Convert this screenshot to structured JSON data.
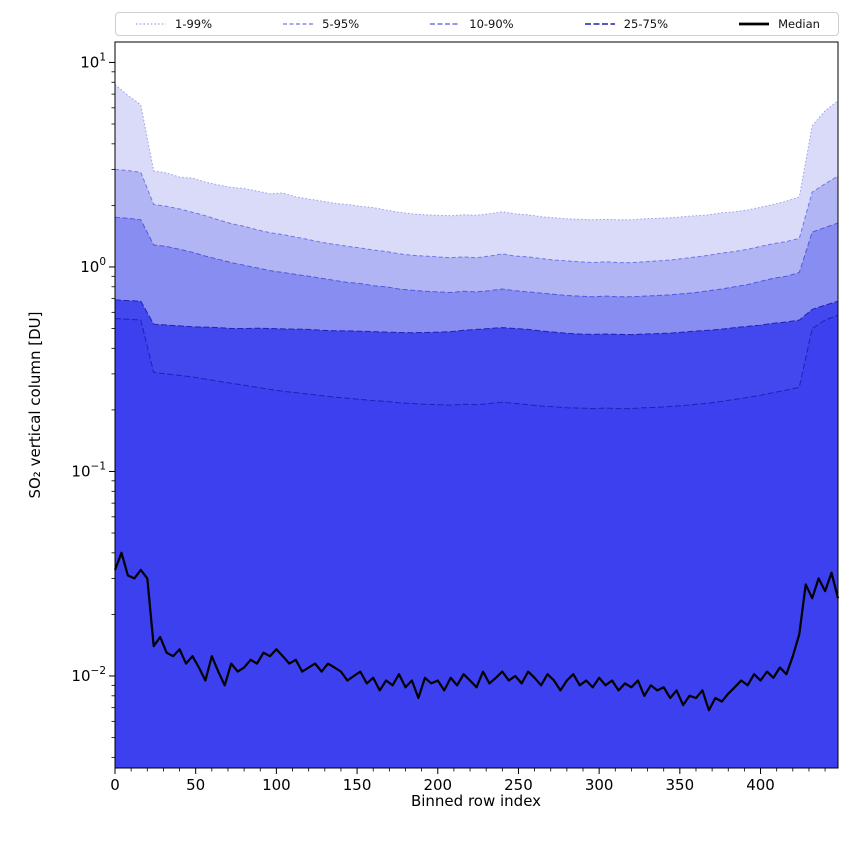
{
  "chart_data": {
    "type": "area",
    "title": "",
    "xlabel": "Binned row index",
    "ylabel": "SO₂ vertical column [DU]",
    "x_axis": {
      "lim": [
        0,
        448
      ],
      "major_ticks": [
        0,
        50,
        100,
        150,
        200,
        250,
        300,
        350,
        400
      ],
      "minor_step": 10
    },
    "y_axis": {
      "scale": "log",
      "lim_log10": [
        -2.45,
        1.1
      ],
      "major_ticks": [
        {
          "value": 0.01,
          "exp": "−2"
        },
        {
          "value": 0.1,
          "exp": "−1"
        },
        {
          "value": 1,
          "exp": "0"
        },
        {
          "value": 10,
          "exp": "1"
        }
      ]
    },
    "legend": [
      {
        "label": "1-99%",
        "color": "#9a9ef0",
        "dash": "1.5 2.2",
        "width": 1.2
      },
      {
        "label": "5-95%",
        "color": "#7076e8",
        "dash": "4 2.5",
        "width": 1.2
      },
      {
        "label": "10-90%",
        "color": "#5157e0",
        "dash": "5 2.5",
        "width": 1.2
      },
      {
        "label": "25-75%",
        "color": "#1e22b8",
        "dash": "6 2.5",
        "width": 1.4
      },
      {
        "label": "Median",
        "color": "#000000",
        "dash": "",
        "width": 2.8
      }
    ],
    "layers": [
      {
        "name": "1-99",
        "series": "p99",
        "fill": "#d9dbf8",
        "edge": "#9a9ef0",
        "dash": "1.5 2.2"
      },
      {
        "name": "5-95",
        "series": "p95",
        "fill": "#b1b5f4",
        "edge": "#7076e8",
        "dash": "4 2.5"
      },
      {
        "name": "10-90",
        "series": "p90",
        "fill": "#888df1",
        "edge": "#5157e0",
        "dash": "5 2.5"
      },
      {
        "name": "25-75",
        "series": "p75",
        "fill": "#4347ee",
        "edge": "#1e22b8",
        "dash": "6 2.5"
      },
      {
        "name": "below-25",
        "series": "p25",
        "fill": "#3c40ee",
        "edge": "#1e22b8",
        "dash": "6 2.5"
      }
    ],
    "x_bands": [
      0,
      8,
      16,
      24,
      32,
      40,
      48,
      56,
      64,
      72,
      80,
      88,
      96,
      104,
      112,
      120,
      128,
      136,
      144,
      152,
      160,
      168,
      176,
      184,
      192,
      200,
      208,
      216,
      224,
      232,
      240,
      248,
      256,
      264,
      272,
      280,
      288,
      296,
      304,
      312,
      320,
      328,
      336,
      344,
      352,
      360,
      368,
      376,
      384,
      392,
      400,
      408,
      416,
      424,
      432,
      440,
      448
    ],
    "series": {
      "p99": [
        7.8,
        6.9,
        6.2,
        2.95,
        2.88,
        2.75,
        2.72,
        2.6,
        2.52,
        2.45,
        2.42,
        2.35,
        2.28,
        2.3,
        2.2,
        2.15,
        2.1,
        2.05,
        2.02,
        1.98,
        1.95,
        1.9,
        1.85,
        1.82,
        1.8,
        1.79,
        1.78,
        1.8,
        1.79,
        1.82,
        1.86,
        1.82,
        1.8,
        1.76,
        1.74,
        1.72,
        1.71,
        1.7,
        1.71,
        1.7,
        1.7,
        1.72,
        1.73,
        1.74,
        1.76,
        1.78,
        1.8,
        1.84,
        1.86,
        1.9,
        1.96,
        2.02,
        2.1,
        2.2,
        4.9,
        5.8,
        6.5
      ],
      "p95": [
        3.0,
        2.96,
        2.9,
        2.02,
        1.98,
        1.92,
        1.85,
        1.78,
        1.7,
        1.63,
        1.58,
        1.52,
        1.47,
        1.44,
        1.4,
        1.36,
        1.32,
        1.29,
        1.26,
        1.24,
        1.21,
        1.19,
        1.16,
        1.14,
        1.13,
        1.12,
        1.11,
        1.12,
        1.11,
        1.13,
        1.16,
        1.13,
        1.12,
        1.1,
        1.08,
        1.07,
        1.06,
        1.05,
        1.06,
        1.05,
        1.05,
        1.06,
        1.07,
        1.08,
        1.1,
        1.12,
        1.14,
        1.17,
        1.19,
        1.22,
        1.26,
        1.3,
        1.33,
        1.38,
        2.32,
        2.55,
        2.78
      ],
      "p90": [
        1.75,
        1.73,
        1.7,
        1.28,
        1.26,
        1.22,
        1.18,
        1.13,
        1.09,
        1.05,
        1.02,
        0.99,
        0.96,
        0.94,
        0.92,
        0.9,
        0.88,
        0.86,
        0.84,
        0.83,
        0.81,
        0.8,
        0.78,
        0.77,
        0.76,
        0.755,
        0.75,
        0.76,
        0.755,
        0.765,
        0.78,
        0.765,
        0.755,
        0.745,
        0.735,
        0.725,
        0.72,
        0.715,
        0.72,
        0.715,
        0.715,
        0.72,
        0.725,
        0.73,
        0.74,
        0.75,
        0.765,
        0.78,
        0.8,
        0.82,
        0.85,
        0.88,
        0.9,
        0.94,
        1.48,
        1.56,
        1.64
      ],
      "p75": [
        0.69,
        0.685,
        0.68,
        0.525,
        0.52,
        0.515,
        0.51,
        0.508,
        0.505,
        0.5,
        0.5,
        0.502,
        0.5,
        0.498,
        0.497,
        0.495,
        0.49,
        0.488,
        0.487,
        0.485,
        0.483,
        0.48,
        0.478,
        0.477,
        0.478,
        0.48,
        0.483,
        0.49,
        0.495,
        0.5,
        0.505,
        0.5,
        0.495,
        0.487,
        0.48,
        0.474,
        0.47,
        0.468,
        0.47,
        0.468,
        0.467,
        0.47,
        0.472,
        0.475,
        0.48,
        0.486,
        0.49,
        0.497,
        0.505,
        0.512,
        0.52,
        0.53,
        0.538,
        0.55,
        0.62,
        0.65,
        0.68
      ],
      "p25": [
        0.56,
        0.555,
        0.55,
        0.305,
        0.3,
        0.295,
        0.29,
        0.283,
        0.276,
        0.27,
        0.264,
        0.258,
        0.252,
        0.247,
        0.243,
        0.239,
        0.235,
        0.231,
        0.228,
        0.225,
        0.222,
        0.22,
        0.217,
        0.215,
        0.213,
        0.212,
        0.211,
        0.213,
        0.212,
        0.215,
        0.218,
        0.215,
        0.212,
        0.209,
        0.207,
        0.205,
        0.204,
        0.203,
        0.204,
        0.203,
        0.203,
        0.205,
        0.206,
        0.208,
        0.21,
        0.213,
        0.216,
        0.22,
        0.225,
        0.23,
        0.236,
        0.243,
        0.25,
        0.258,
        0.5,
        0.55,
        0.58
      ]
    },
    "median": {
      "color": "#000000",
      "width": 2.2,
      "x": [
        0,
        4,
        8,
        12,
        16,
        20,
        24,
        28,
        32,
        36,
        40,
        44,
        48,
        52,
        56,
        60,
        64,
        68,
        72,
        76,
        80,
        84,
        88,
        92,
        96,
        100,
        104,
        108,
        112,
        116,
        120,
        124,
        128,
        132,
        136,
        140,
        144,
        148,
        152,
        156,
        160,
        164,
        168,
        172,
        176,
        180,
        184,
        188,
        192,
        196,
        200,
        204,
        208,
        212,
        216,
        220,
        224,
        228,
        232,
        236,
        240,
        244,
        248,
        252,
        256,
        260,
        264,
        268,
        272,
        276,
        280,
        284,
        288,
        292,
        296,
        300,
        304,
        308,
        312,
        316,
        320,
        324,
        328,
        332,
        336,
        340,
        344,
        348,
        352,
        356,
        360,
        364,
        368,
        372,
        376,
        380,
        384,
        388,
        392,
        396,
        400,
        404,
        408,
        412,
        416,
        420,
        424,
        428,
        432,
        436,
        440,
        444,
        448
      ],
      "values": [
        0.033,
        0.04,
        0.031,
        0.03,
        0.033,
        0.03,
        0.014,
        0.0155,
        0.013,
        0.0125,
        0.0135,
        0.0115,
        0.0125,
        0.011,
        0.0095,
        0.0125,
        0.0105,
        0.009,
        0.0115,
        0.0105,
        0.011,
        0.012,
        0.0115,
        0.013,
        0.0125,
        0.0135,
        0.0125,
        0.0115,
        0.012,
        0.0105,
        0.011,
        0.0115,
        0.0105,
        0.0115,
        0.011,
        0.0105,
        0.0095,
        0.01,
        0.0105,
        0.0092,
        0.0098,
        0.0085,
        0.0095,
        0.009,
        0.0102,
        0.0088,
        0.0095,
        0.0078,
        0.0098,
        0.0092,
        0.0095,
        0.0085,
        0.0098,
        0.009,
        0.0102,
        0.0095,
        0.0088,
        0.0105,
        0.0092,
        0.0098,
        0.0105,
        0.0095,
        0.01,
        0.0092,
        0.0105,
        0.0098,
        0.009,
        0.0102,
        0.0095,
        0.0085,
        0.0095,
        0.0102,
        0.009,
        0.0095,
        0.0088,
        0.0098,
        0.009,
        0.0095,
        0.0085,
        0.0092,
        0.0088,
        0.0095,
        0.008,
        0.009,
        0.0085,
        0.0088,
        0.0078,
        0.0085,
        0.0072,
        0.008,
        0.0078,
        0.0085,
        0.0068,
        0.0078,
        0.0075,
        0.0082,
        0.0088,
        0.0095,
        0.009,
        0.0102,
        0.0095,
        0.0105,
        0.0098,
        0.011,
        0.0102,
        0.0125,
        0.016,
        0.028,
        0.024,
        0.03,
        0.026,
        0.032,
        0.024
      ]
    }
  }
}
